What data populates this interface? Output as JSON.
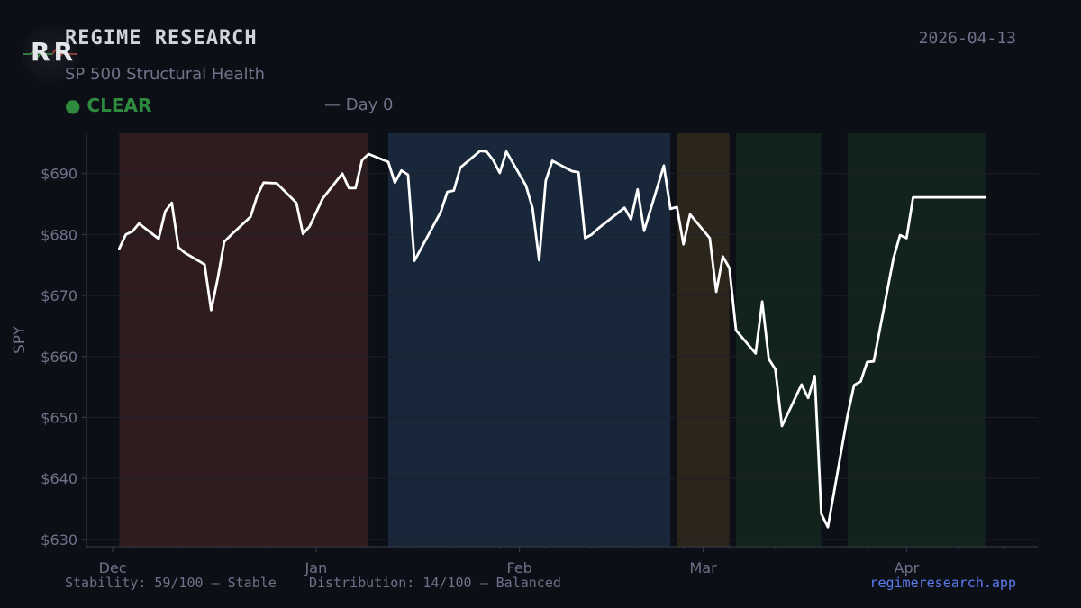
{
  "header": {
    "logo_text": "RR",
    "brand": "REGIME RESEARCH",
    "subtitle": "SP 500 Structural Health",
    "date": "2026-04-13",
    "status_label": "● CLEAR",
    "status_color": "#2e8b3e",
    "day_text": "— Day 0"
  },
  "footer": {
    "stability": "Stability: 59/100 — Stable",
    "distribution": "Distribution: 14/100 — Balanced",
    "link": "regimeresearch.app"
  },
  "chart_data": {
    "type": "line",
    "ylabel": "SPY",
    "ylim": [
      628.8,
      696.6
    ],
    "yticks": [
      630,
      640,
      650,
      660,
      670,
      680,
      690
    ],
    "ytick_labels": [
      "$630",
      "$640",
      "$650",
      "$660",
      "$670",
      "$680",
      "$690"
    ],
    "xlim": [
      "2025-11-27",
      "2026-04-21"
    ],
    "xticks": [
      "2025-12-01",
      "2026-01-01",
      "2026-02-01",
      "2026-03-01",
      "2026-04-01"
    ],
    "xtick_labels": [
      "Dec",
      "Jan",
      "Feb",
      "Mar",
      "Apr"
    ],
    "grid": true,
    "line_color": "#ffffff",
    "regimes": [
      {
        "start": "2025-12-02",
        "end": "2026-01-09",
        "color": "#2e1c1f"
      },
      {
        "start": "2026-01-12",
        "end": "2026-02-24",
        "color": "#18283a"
      },
      {
        "start": "2026-02-25",
        "end": "2026-03-05",
        "color": "#2b251b"
      },
      {
        "start": "2026-03-06",
        "end": "2026-03-19",
        "color": "#12221d"
      },
      {
        "start": "2026-03-23",
        "end": "2026-04-13",
        "color": "#12221d"
      }
    ],
    "series": [
      {
        "x": [
          "2025-12-02",
          "2025-12-03",
          "2025-12-04",
          "2025-12-05",
          "2025-12-08",
          "2025-12-09",
          "2025-12-10",
          "2025-12-11",
          "2025-12-12",
          "2025-12-15",
          "2025-12-16",
          "2025-12-17",
          "2025-12-18",
          "2025-12-19",
          "2025-12-22",
          "2025-12-23",
          "2025-12-24",
          "2025-12-26",
          "2025-12-29",
          "2025-12-30",
          "2025-12-31",
          "2026-01-02",
          "2026-01-05",
          "2026-01-06",
          "2026-01-07",
          "2026-01-08",
          "2026-01-09",
          "2026-01-12",
          "2026-01-13",
          "2026-01-14",
          "2026-01-15",
          "2026-01-16",
          "2026-01-20",
          "2026-01-21",
          "2026-01-22",
          "2026-01-23",
          "2026-01-26",
          "2026-01-27",
          "2026-01-28",
          "2026-01-29",
          "2026-01-30",
          "2026-02-02",
          "2026-02-03",
          "2026-02-04",
          "2026-02-05",
          "2026-02-06",
          "2026-02-09",
          "2026-02-10",
          "2026-02-11",
          "2026-02-12",
          "2026-02-13",
          "2026-02-17",
          "2026-02-18",
          "2026-02-19",
          "2026-02-20",
          "2026-02-23",
          "2026-02-24",
          "2026-02-25",
          "2026-02-26",
          "2026-02-27",
          "2026-03-02",
          "2026-03-03",
          "2026-03-04",
          "2026-03-05",
          "2026-03-06",
          "2026-03-09",
          "2026-03-10",
          "2026-03-11",
          "2026-03-12",
          "2026-03-13",
          "2026-03-16",
          "2026-03-17",
          "2026-03-18",
          "2026-03-19",
          "2026-03-20",
          "2026-03-23",
          "2026-03-24",
          "2026-03-25",
          "2026-03-26",
          "2026-03-27",
          "2026-03-30",
          "2026-03-31",
          "2026-04-01",
          "2026-04-02",
          "2026-04-03",
          "2026-04-06",
          "2026-04-07",
          "2026-04-08",
          "2026-04-09",
          "2026-04-10",
          "2026-04-13"
        ],
        "y": [
          677.7,
          680.0,
          680.5,
          681.8,
          679.3,
          683.8,
          685.2,
          677.9,
          677.0,
          675.1,
          667.6,
          672.8,
          678.8,
          679.9,
          682.9,
          686.3,
          688.5,
          688.4,
          685.2,
          680.1,
          681.3,
          685.9,
          690.0,
          687.6,
          687.6,
          692.2,
          693.2,
          691.9,
          688.5,
          690.5,
          689.8,
          675.7,
          683.7,
          687.0,
          687.2,
          691.0,
          693.7,
          693.6,
          692.2,
          690.1,
          693.6,
          688.0,
          684.3,
          675.8,
          688.8,
          692.1,
          690.4,
          690.2,
          679.4,
          680.0,
          681.0,
          684.4,
          682.5,
          687.4,
          680.6,
          691.3,
          684.2,
          684.5,
          678.4,
          683.3,
          679.4,
          670.6,
          676.4,
          674.5,
          664.3,
          660.5,
          669.0,
          659.6,
          657.9,
          648.6,
          655.4,
          653.2,
          656.8,
          634.2,
          632.0,
          650.3,
          655.3,
          655.9,
          659.1,
          659.2,
          676.1,
          679.9,
          679.4,
          686.1,
          686.1,
          686.1,
          686.1,
          686.1,
          686.1,
          686.1,
          686.1
        ]
      }
    ]
  }
}
